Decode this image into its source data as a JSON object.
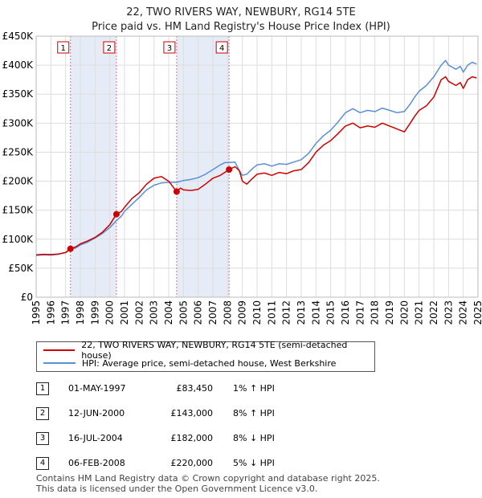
{
  "chart_data": {
    "type": "line",
    "title": "22, TWO RIVERS WAY, NEWBURY, RG14 5TE",
    "subtitle": "Price paid vs. HM Land Registry's House Price Index (HPI)",
    "xlim": [
      1995,
      2025
    ],
    "ylim": [
      0,
      450000
    ],
    "x_ticks": [
      "1995",
      "1996",
      "1997",
      "1998",
      "1999",
      "2000",
      "2001",
      "2002",
      "2003",
      "2004",
      "2005",
      "2006",
      "2007",
      "2008",
      "2009",
      "2010",
      "2011",
      "2012",
      "2013",
      "2014",
      "2015",
      "2016",
      "2017",
      "2018",
      "2019",
      "2020",
      "2021",
      "2022",
      "2023",
      "2024",
      "2025"
    ],
    "y_ticks": [
      {
        "value": 0,
        "label": "£0"
      },
      {
        "value": 50000,
        "label": "£50K"
      },
      {
        "value": 100000,
        "label": "£100K"
      },
      {
        "value": 150000,
        "label": "£150K"
      },
      {
        "value": 200000,
        "label": "£200K"
      },
      {
        "value": 250000,
        "label": "£250K"
      },
      {
        "value": 300000,
        "label": "£300K"
      },
      {
        "value": 350000,
        "label": "£350K"
      },
      {
        "value": 400000,
        "label": "£400K"
      },
      {
        "value": 450000,
        "label": "£450K"
      }
    ],
    "series": [
      {
        "name": "22, TWO RIVERS WAY, NEWBURY, RG14 5TE (semi-detached house)",
        "color": "#cc0000",
        "x": [
          1995.0,
          1995.5,
          1996.0,
          1996.5,
          1997.0,
          1997.33,
          1997.7,
          1998.0,
          1998.5,
          1999.0,
          1999.5,
          2000.0,
          2000.45,
          2000.8,
          2001.0,
          2001.5,
          2002.0,
          2002.5,
          2003.0,
          2003.5,
          2004.0,
          2004.54,
          2004.8,
          2005.0,
          2005.5,
          2006.0,
          2006.5,
          2007.0,
          2007.5,
          2007.8,
          2008.1,
          2008.5,
          2008.8,
          2009.0,
          2009.3,
          2009.7,
          2010.0,
          2010.5,
          2011.0,
          2011.5,
          2012.0,
          2012.5,
          2013.0,
          2013.5,
          2014.0,
          2014.5,
          2015.0,
          2015.5,
          2016.0,
          2016.5,
          2017.0,
          2017.5,
          2018.0,
          2018.5,
          2019.0,
          2019.5,
          2020.0,
          2020.4,
          2020.7,
          2021.0,
          2021.5,
          2022.0,
          2022.5,
          2022.8,
          2023.0,
          2023.5,
          2023.8,
          2024.0,
          2024.3,
          2024.6,
          2024.9
        ],
        "values": [
          73000,
          74000,
          73500,
          74500,
          77000,
          83450,
          87000,
          92000,
          97000,
          103000,
          112000,
          125000,
          143000,
          148000,
          155000,
          170000,
          180000,
          195000,
          205000,
          208000,
          200000,
          182000,
          188000,
          185000,
          184000,
          186000,
          195000,
          205000,
          210000,
          215000,
          220000,
          225000,
          218000,
          200000,
          195000,
          205000,
          212000,
          214000,
          210000,
          215000,
          213000,
          218000,
          220000,
          232000,
          250000,
          262000,
          270000,
          282000,
          295000,
          300000,
          292000,
          295000,
          293000,
          300000,
          295000,
          290000,
          285000,
          300000,
          312000,
          322000,
          330000,
          345000,
          375000,
          380000,
          372000,
          365000,
          370000,
          360000,
          375000,
          380000,
          378000
        ]
      },
      {
        "name": "HPI: Average price, semi-detached house, West Berkshire",
        "color": "#5b8fd6",
        "x": [
          1995.0,
          1995.5,
          1996.0,
          1996.5,
          1997.0,
          1997.33,
          1997.7,
          1998.0,
          1998.5,
          1999.0,
          1999.5,
          2000.0,
          2000.45,
          2000.8,
          2001.0,
          2001.5,
          2002.0,
          2002.5,
          2003.0,
          2003.5,
          2004.0,
          2004.54,
          2004.8,
          2005.0,
          2005.5,
          2006.0,
          2006.5,
          2007.0,
          2007.5,
          2007.8,
          2008.1,
          2008.5,
          2008.8,
          2009.0,
          2009.3,
          2009.7,
          2010.0,
          2010.5,
          2011.0,
          2011.5,
          2012.0,
          2012.5,
          2013.0,
          2013.5,
          2014.0,
          2014.5,
          2015.0,
          2015.5,
          2016.0,
          2016.5,
          2017.0,
          2017.5,
          2018.0,
          2018.5,
          2019.0,
          2019.5,
          2020.0,
          2020.4,
          2020.7,
          2021.0,
          2021.5,
          2022.0,
          2022.5,
          2022.8,
          2023.0,
          2023.5,
          2023.8,
          2024.0,
          2024.3,
          2024.6,
          2024.9
        ],
        "values": [
          72000,
          73000,
          72500,
          74000,
          77000,
          82500,
          85000,
          90000,
          95000,
          102000,
          110000,
          120000,
          132000,
          140000,
          148000,
          160000,
          172000,
          185000,
          193000,
          197000,
          198000,
          198000,
          200000,
          201000,
          203000,
          206000,
          212000,
          220000,
          228000,
          232000,
          232000,
          233000,
          218000,
          210000,
          212000,
          222000,
          228000,
          230000,
          226000,
          230000,
          229000,
          233000,
          237000,
          248000,
          265000,
          278000,
          288000,
          302000,
          318000,
          325000,
          318000,
          322000,
          320000,
          326000,
          322000,
          318000,
          320000,
          333000,
          345000,
          355000,
          365000,
          380000,
          400000,
          408000,
          400000,
          393000,
          398000,
          388000,
          400000,
          405000,
          402000
        ]
      }
    ],
    "sales": [
      {
        "num": "1",
        "year": 1997.33,
        "value": 83450
      },
      {
        "num": "2",
        "year": 2000.45,
        "value": 143000
      },
      {
        "num": "3",
        "year": 2004.54,
        "value": 182000
      },
      {
        "num": "4",
        "year": 2008.1,
        "value": 220000
      }
    ],
    "shaded_ranges": [
      [
        1997.33,
        2000.45
      ],
      [
        2004.54,
        2008.1
      ]
    ]
  },
  "legend": {
    "property": "22, TWO RIVERS WAY, NEWBURY, RG14 5TE (semi-detached house)",
    "hpi": "HPI: Average price, semi-detached house, West Berkshire"
  },
  "sales_table": [
    {
      "num": "1",
      "date": "01-MAY-1997",
      "price": "£83,450",
      "hpi": "1% ↑ HPI"
    },
    {
      "num": "2",
      "date": "12-JUN-2000",
      "price": "£143,000",
      "hpi": "8% ↑ HPI"
    },
    {
      "num": "3",
      "date": "16-JUL-2004",
      "price": "£182,000",
      "hpi": "8% ↓ HPI"
    },
    {
      "num": "4",
      "date": "06-FEB-2008",
      "price": "£220,000",
      "hpi": "5% ↓ HPI"
    }
  ],
  "footer": {
    "line1": "Contains HM Land Registry data © Crown copyright and database right 2025.",
    "line2": "This data is licensed under the Open Government Licence v3.0."
  },
  "colors": {
    "property": "#cc0000",
    "hpi": "#5b8fd6",
    "shade": "#e6ecf7",
    "grid": "#dddddd"
  }
}
